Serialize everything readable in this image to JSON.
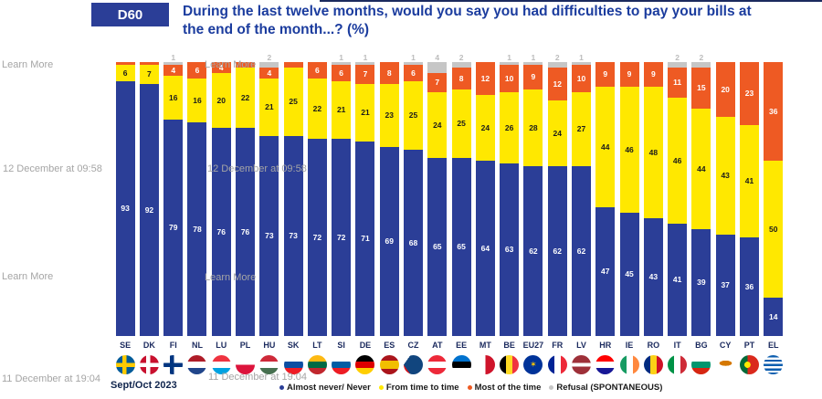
{
  "header": {
    "code": "D60",
    "title": "During the last twelve months, would you say you had difficulties to pay your bills at the end of the month...? (%)"
  },
  "overlays": {
    "learn_more": "Learn More",
    "timestamp_morning": "12 December at 09:58",
    "timestamp_evening": "11 December at 19:04"
  },
  "footer": {
    "survey_date": "Sept/Oct 2023"
  },
  "legend": {
    "items": [
      {
        "label": "Almost never/ Never",
        "color": "#2b3e97"
      },
      {
        "label": "From time to time",
        "color": "#ffe800"
      },
      {
        "label": "Most of the time",
        "color": "#ee5a23"
      },
      {
        "label": "Refusal (SPONTANEOUS)",
        "color": "#c6c6c6"
      }
    ]
  },
  "chart_data": {
    "type": "bar",
    "stacked": true,
    "unit": "%",
    "ylim": [
      0,
      100
    ],
    "grid": false,
    "legend_position": "bottom",
    "categories": [
      "SE",
      "DK",
      "FI",
      "NL",
      "LU",
      "PL",
      "HU",
      "SK",
      "LT",
      "SI",
      "DE",
      "ES",
      "CZ",
      "AT",
      "EE",
      "MT",
      "BE",
      "EU27",
      "FR",
      "LV",
      "HR",
      "IE",
      "RO",
      "IT",
      "BG",
      "CY",
      "PT",
      "EL"
    ],
    "series": [
      {
        "name": "Almost never/ Never",
        "color": "#2b3e97",
        "values": [
          93,
          92,
          79,
          78,
          76,
          76,
          73,
          73,
          72,
          72,
          71,
          69,
          68,
          65,
          65,
          64,
          63,
          62,
          62,
          62,
          47,
          45,
          43,
          41,
          39,
          37,
          36,
          14
        ]
      },
      {
        "name": "From time to time",
        "color": "#ffe800",
        "values": [
          6,
          7,
          16,
          16,
          20,
          22,
          21,
          25,
          22,
          21,
          21,
          23,
          25,
          24,
          25,
          24,
          26,
          28,
          24,
          27,
          44,
          46,
          48,
          46,
          44,
          43,
          41,
          50
        ]
      },
      {
        "name": "Most of the time",
        "color": "#ee5a23",
        "values": [
          1,
          1,
          4,
          6,
          4,
          2,
          4,
          2,
          6,
          6,
          7,
          8,
          6,
          7,
          8,
          12,
          10,
          9,
          12,
          10,
          9,
          9,
          9,
          11,
          15,
          20,
          23,
          36
        ]
      },
      {
        "name": "Refusal (SPONTANEOUS)",
        "color": "#c6c6c6",
        "values": [
          0,
          0,
          1,
          0,
          0,
          0,
          2,
          0,
          0,
          1,
          1,
          0,
          1,
          4,
          2,
          0,
          1,
          1,
          2,
          1,
          0,
          0,
          0,
          2,
          2,
          0,
          0,
          0
        ]
      }
    ],
    "label_rules": {
      "min_most_of_time_label": 4,
      "refusal_label_position": "above-bar"
    },
    "flags": [
      {
        "css": "linear-gradient(90deg, rgba(0,0,0,0) 0 34%, #fecb00 34% 54%, rgba(0,0,0,0) 54%), linear-gradient(180deg, rgba(0,0,0,0) 0 40%, #fecb00 40% 62%, rgba(0,0,0,0) 62%), #005b99"
      },
      {
        "css": "linear-gradient(90deg, rgba(0,0,0,0) 0 34%, #ffffff 34% 54%, rgba(0,0,0,0) 54%), linear-gradient(180deg, rgba(0,0,0,0) 0 40%, #ffffff 40% 62%, rgba(0,0,0,0) 62%), #c8102e"
      },
      {
        "css": "linear-gradient(90deg, rgba(0,0,0,0) 0 34%, #003580 34% 54%, rgba(0,0,0,0) 54%), linear-gradient(180deg, rgba(0,0,0,0) 0 40%, #003580 40% 62%, rgba(0,0,0,0) 62%), #ffffff"
      },
      {
        "css": "linear-gradient(180deg, #ae1c28 0 33%, #ffffff 33% 67%, #21468b 67%)"
      },
      {
        "css": "linear-gradient(180deg, #ef3340 0 33%, #ffffff 33% 67%, #00a2e1 67%)"
      },
      {
        "css": "linear-gradient(180deg, #ffffff 0 50%, #dc143c 50%)"
      },
      {
        "css": "linear-gradient(180deg, #ce2939 0 33%, #ffffff 33% 67%, #477050 67%)"
      },
      {
        "css": "linear-gradient(180deg, #ffffff 0 33%, #0b4ea2 33% 67%, #ee1c25 67%)"
      },
      {
        "css": "linear-gradient(180deg, #fdb913 0 33%, #006a44 33% 67%, #c1272d 67%)"
      },
      {
        "css": "linear-gradient(180deg, #ffffff 0 33%, #005da4 33% 67%, #ed1c24 67%)"
      },
      {
        "css": "linear-gradient(180deg, #000000 0 33%, #dd0000 33% 67%, #ffce00 67%)"
      },
      {
        "css": "linear-gradient(180deg, #aa151b 0 28%, #f1bf00 28% 72%, #aa151b 72%)"
      },
      {
        "css": "conic-gradient(from 35deg at 0% 50%, #11457e 0 110deg, rgba(0,0,0,0) 110deg), linear-gradient(180deg, #ffffff 0 50%, #d7141a 50%)"
      },
      {
        "css": "linear-gradient(180deg, #ed2939 0 33%, #ffffff 33% 67%, #ed2939 67%)"
      },
      {
        "css": "linear-gradient(180deg, #0072ce 0 33%, #000000 33% 67%, #ffffff 67%)"
      },
      {
        "css": "linear-gradient(90deg, #ffffff 0 50%, #cf142b 50%)"
      },
      {
        "css": "linear-gradient(90deg, #000000 0 33%, #fdda24 33% 67%, #ef3340 67%)"
      },
      {
        "css": "#003399",
        "glyph": "✶"
      },
      {
        "css": "linear-gradient(90deg, #002395 0 33%, #ffffff 33% 67%, #ed2939 67%)"
      },
      {
        "css": "linear-gradient(180deg, #9e3039 0 40%, #ffffff 40% 60%, #9e3039 60%)"
      },
      {
        "css": "linear-gradient(180deg, #ff0000 0 33%, #ffffff 33% 67%, #171796 67%)"
      },
      {
        "css": "linear-gradient(90deg, #169b62 0 33%, #ffffff 33% 67%, #ff883e 67%)"
      },
      {
        "css": "linear-gradient(90deg, #002b7f 0 33%, #fcd116 33% 67%, #ce1126 67%)"
      },
      {
        "css": "linear-gradient(90deg, #009246 0 33%, #ffffff 33% 67%, #ce2b37 67%)"
      },
      {
        "css": "linear-gradient(180deg, #ffffff 0 33%, #00966e 33% 67%, #d62612 67%)"
      },
      {
        "css": "radial-gradient(ellipse 7px 3px at 50% 42%, #d57800 95%, rgba(0,0,0,0) 100%), #ffffff"
      },
      {
        "css": "radial-gradient(circle 3.5px at 40% 50%, #ffe900 95%, rgba(0,0,0,0) 100%), linear-gradient(90deg, #046a38 0 40%, #da291c 40%)"
      },
      {
        "css": "repeating-linear-gradient(180deg, #0d5eaf 0 2.4px, #ffffff 2.4px 4.8px)"
      }
    ]
  }
}
